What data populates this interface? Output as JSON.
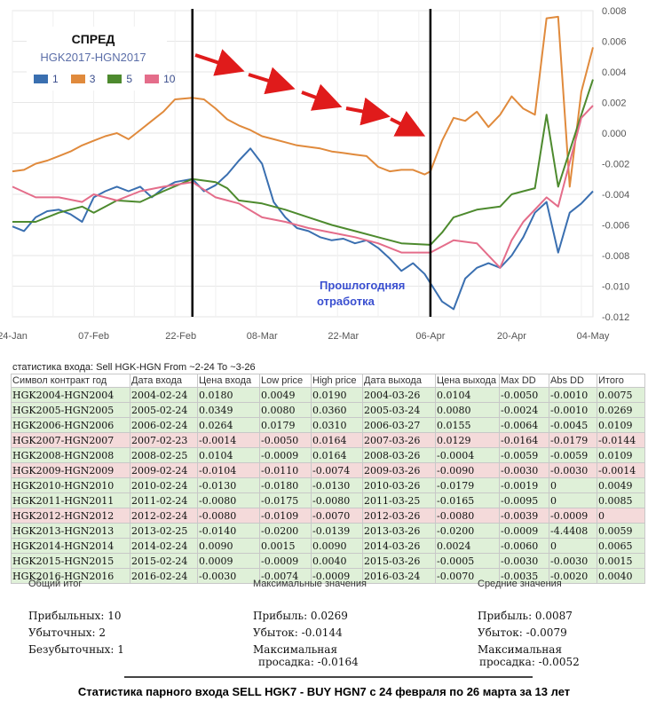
{
  "legend": {
    "title": "СПРЕД",
    "subtitle": "HGK2017-HGN2017",
    "items": [
      {
        "label": "1",
        "color": "#3a6fb0"
      },
      {
        "label": "3",
        "color": "#e08a3c"
      },
      {
        "label": "5",
        "color": "#4d8a2e"
      },
      {
        "label": "10",
        "color": "#e46d8a"
      }
    ]
  },
  "annotation": "Прошлогодняя отработка",
  "chart_data": {
    "type": "line",
    "x_ticks": [
      "24-Jan",
      "07-Feb",
      "22-Feb",
      "08-Mar",
      "22-Mar",
      "06-Apr",
      "20-Apr",
      "04-May"
    ],
    "y_ticks": [
      "0.008",
      "0.006",
      "0.004",
      "0.002",
      "0.000",
      "-0.002",
      "-0.004",
      "-0.006",
      "-0.008",
      "-0.010",
      "-0.012"
    ],
    "ylim": [
      -0.012,
      0.008
    ],
    "xlim": [
      "2017-01-24",
      "2017-05-04"
    ],
    "grid": true,
    "vertical_markers": [
      "2017-02-24",
      "2017-04-06"
    ],
    "series": [
      {
        "name": "1",
        "color": "#3a6fb0",
        "points": [
          [
            "2017-01-24",
            -0.0061
          ],
          [
            "2017-01-26",
            -0.0064
          ],
          [
            "2017-01-28",
            -0.0055
          ],
          [
            "2017-01-30",
            -0.0051
          ],
          [
            "2017-02-01",
            -0.005
          ],
          [
            "2017-02-03",
            -0.0053
          ],
          [
            "2017-02-05",
            -0.0058
          ],
          [
            "2017-02-07",
            -0.0042
          ],
          [
            "2017-02-09",
            -0.0038
          ],
          [
            "2017-02-11",
            -0.0035
          ],
          [
            "2017-02-13",
            -0.0038
          ],
          [
            "2017-02-15",
            -0.0035
          ],
          [
            "2017-02-17",
            -0.0042
          ],
          [
            "2017-02-19",
            -0.0036
          ],
          [
            "2017-02-21",
            -0.0032
          ],
          [
            "2017-02-24",
            -0.003
          ],
          [
            "2017-02-26",
            -0.0038
          ],
          [
            "2017-02-28",
            -0.0034
          ],
          [
            "2017-03-02",
            -0.0027
          ],
          [
            "2017-03-04",
            -0.0018
          ],
          [
            "2017-03-06",
            -0.001
          ],
          [
            "2017-03-08",
            -0.002
          ],
          [
            "2017-03-10",
            -0.0045
          ],
          [
            "2017-03-12",
            -0.0055
          ],
          [
            "2017-03-14",
            -0.0062
          ],
          [
            "2017-03-16",
            -0.0064
          ],
          [
            "2017-03-18",
            -0.0068
          ],
          [
            "2017-03-20",
            -0.007
          ],
          [
            "2017-03-22",
            -0.0069
          ],
          [
            "2017-03-24",
            -0.0072
          ],
          [
            "2017-03-26",
            -0.007
          ],
          [
            "2017-03-28",
            -0.0075
          ],
          [
            "2017-03-30",
            -0.0082
          ],
          [
            "2017-04-01",
            -0.009
          ],
          [
            "2017-04-03",
            -0.0085
          ],
          [
            "2017-04-05",
            -0.0092
          ],
          [
            "2017-04-06",
            -0.0098
          ],
          [
            "2017-04-08",
            -0.011
          ],
          [
            "2017-04-10",
            -0.0115
          ],
          [
            "2017-04-12",
            -0.0095
          ],
          [
            "2017-04-14",
            -0.0088
          ],
          [
            "2017-04-16",
            -0.0085
          ],
          [
            "2017-04-18",
            -0.0088
          ],
          [
            "2017-04-20",
            -0.008
          ],
          [
            "2017-04-22",
            -0.0068
          ],
          [
            "2017-04-24",
            -0.0052
          ],
          [
            "2017-04-26",
            -0.0045
          ],
          [
            "2017-04-28",
            -0.0078
          ],
          [
            "2017-04-30",
            -0.0052
          ],
          [
            "2017-05-02",
            -0.0046
          ],
          [
            "2017-05-04",
            -0.0038
          ]
        ]
      },
      {
        "name": "3",
        "color": "#e08a3c",
        "points": [
          [
            "2017-01-24",
            -0.0025
          ],
          [
            "2017-01-26",
            -0.0024
          ],
          [
            "2017-01-28",
            -0.002
          ],
          [
            "2017-01-30",
            -0.0018
          ],
          [
            "2017-02-01",
            -0.0015
          ],
          [
            "2017-02-03",
            -0.0012
          ],
          [
            "2017-02-05",
            -0.0008
          ],
          [
            "2017-02-07",
            -0.0005
          ],
          [
            "2017-02-09",
            -0.0002
          ],
          [
            "2017-02-11",
            0.0
          ],
          [
            "2017-02-13",
            -0.0004
          ],
          [
            "2017-02-15",
            0.0002
          ],
          [
            "2017-02-17",
            0.0008
          ],
          [
            "2017-02-19",
            0.0014
          ],
          [
            "2017-02-21",
            0.0022
          ],
          [
            "2017-02-24",
            0.0023
          ],
          [
            "2017-02-26",
            0.0022
          ],
          [
            "2017-02-28",
            0.0016
          ],
          [
            "2017-03-02",
            0.0009
          ],
          [
            "2017-03-04",
            0.0005
          ],
          [
            "2017-03-06",
            0.0002
          ],
          [
            "2017-03-08",
            -0.0002
          ],
          [
            "2017-03-10",
            -0.0004
          ],
          [
            "2017-03-12",
            -0.0006
          ],
          [
            "2017-03-14",
            -0.0008
          ],
          [
            "2017-03-16",
            -0.0009
          ],
          [
            "2017-03-18",
            -0.001
          ],
          [
            "2017-03-20",
            -0.0012
          ],
          [
            "2017-03-22",
            -0.0013
          ],
          [
            "2017-03-24",
            -0.0014
          ],
          [
            "2017-03-26",
            -0.0015
          ],
          [
            "2017-03-28",
            -0.0022
          ],
          [
            "2017-03-30",
            -0.0025
          ],
          [
            "2017-04-01",
            -0.0024
          ],
          [
            "2017-04-03",
            -0.0024
          ],
          [
            "2017-04-05",
            -0.0027
          ],
          [
            "2017-04-06",
            -0.0025
          ],
          [
            "2017-04-08",
            -0.0005
          ],
          [
            "2017-04-10",
            0.001
          ],
          [
            "2017-04-12",
            0.0008
          ],
          [
            "2017-04-14",
            0.0014
          ],
          [
            "2017-04-16",
            0.0004
          ],
          [
            "2017-04-18",
            0.0012
          ],
          [
            "2017-04-20",
            0.0024
          ],
          [
            "2017-04-22",
            0.0016
          ],
          [
            "2017-04-24",
            0.0012
          ],
          [
            "2017-04-26",
            0.0075
          ],
          [
            "2017-04-28",
            0.0076
          ],
          [
            "2017-04-30",
            -0.0035
          ],
          [
            "2017-05-02",
            0.0027
          ],
          [
            "2017-05-04",
            0.0056
          ]
        ]
      },
      {
        "name": "5",
        "color": "#4d8a2e",
        "points": [
          [
            "2017-01-24",
            -0.0058
          ],
          [
            "2017-01-28",
            -0.0058
          ],
          [
            "2017-02-01",
            -0.0052
          ],
          [
            "2017-02-05",
            -0.0048
          ],
          [
            "2017-02-07",
            -0.0052
          ],
          [
            "2017-02-11",
            -0.0044
          ],
          [
            "2017-02-15",
            -0.0045
          ],
          [
            "2017-02-19",
            -0.0038
          ],
          [
            "2017-02-24",
            -0.003
          ],
          [
            "2017-02-28",
            -0.0032
          ],
          [
            "2017-03-02",
            -0.0036
          ],
          [
            "2017-03-04",
            -0.0044
          ],
          [
            "2017-03-08",
            -0.0046
          ],
          [
            "2017-03-12",
            -0.005
          ],
          [
            "2017-03-16",
            -0.0055
          ],
          [
            "2017-03-20",
            -0.006
          ],
          [
            "2017-03-24",
            -0.0064
          ],
          [
            "2017-03-28",
            -0.0068
          ],
          [
            "2017-04-01",
            -0.0072
          ],
          [
            "2017-04-06",
            -0.0073
          ],
          [
            "2017-04-08",
            -0.0065
          ],
          [
            "2017-04-10",
            -0.0055
          ],
          [
            "2017-04-14",
            -0.005
          ],
          [
            "2017-04-18",
            -0.0048
          ],
          [
            "2017-04-20",
            -0.004
          ],
          [
            "2017-04-22",
            -0.0038
          ],
          [
            "2017-04-24",
            -0.0036
          ],
          [
            "2017-04-26",
            0.0012
          ],
          [
            "2017-04-28",
            -0.0035
          ],
          [
            "2017-05-02",
            0.0012
          ],
          [
            "2017-05-04",
            0.0035
          ]
        ]
      },
      {
        "name": "10",
        "color": "#e46d8a",
        "points": [
          [
            "2017-01-24",
            -0.0035
          ],
          [
            "2017-01-28",
            -0.0042
          ],
          [
            "2017-02-01",
            -0.0042
          ],
          [
            "2017-02-05",
            -0.0045
          ],
          [
            "2017-02-07",
            -0.004
          ],
          [
            "2017-02-11",
            -0.0044
          ],
          [
            "2017-02-15",
            -0.0038
          ],
          [
            "2017-02-19",
            -0.0035
          ],
          [
            "2017-02-24",
            -0.0032
          ],
          [
            "2017-02-28",
            -0.0042
          ],
          [
            "2017-03-04",
            -0.0046
          ],
          [
            "2017-03-08",
            -0.0055
          ],
          [
            "2017-03-12",
            -0.0058
          ],
          [
            "2017-03-16",
            -0.0062
          ],
          [
            "2017-03-20",
            -0.0065
          ],
          [
            "2017-03-24",
            -0.0068
          ],
          [
            "2017-03-28",
            -0.0072
          ],
          [
            "2017-04-01",
            -0.0078
          ],
          [
            "2017-04-06",
            -0.0078
          ],
          [
            "2017-04-10",
            -0.007
          ],
          [
            "2017-04-14",
            -0.0072
          ],
          [
            "2017-04-18",
            -0.0088
          ],
          [
            "2017-04-20",
            -0.007
          ],
          [
            "2017-04-22",
            -0.0058
          ],
          [
            "2017-04-26",
            -0.0042
          ],
          [
            "2017-04-28",
            -0.0048
          ],
          [
            "2017-05-02",
            0.001
          ],
          [
            "2017-05-04",
            0.0018
          ]
        ]
      }
    ]
  },
  "table": {
    "title": "статистика входа: Sell HGK-HGN From ~2-24 To ~3-26",
    "columns": [
      "Символ контракт год",
      "Дата входа",
      "Цена входа",
      "Low price",
      "High price",
      "Дата выхода",
      "Цена выхода",
      "Max DD",
      "Abs DD",
      "Итого"
    ],
    "rows": [
      {
        "status": "pos",
        "cells": [
          "HGK2004-HGN2004",
          "2004-02-24",
          "0.0180",
          "0.0049",
          "0.0190",
          "2004-03-26",
          "0.0104",
          "-0.0050",
          "-0.0010",
          "0.0075"
        ]
      },
      {
        "status": "pos",
        "cells": [
          "HGK2005-HGN2005",
          "2005-02-24",
          "0.0349",
          "0.0080",
          "0.0360",
          "2005-03-24",
          "0.0080",
          "-0.0024",
          "-0.0010",
          "0.0269"
        ]
      },
      {
        "status": "pos",
        "cells": [
          "HGK2006-HGN2006",
          "2006-02-24",
          "0.0264",
          "0.0179",
          "0.0310",
          "2006-03-27",
          "0.0155",
          "-0.0064",
          "-0.0045",
          "0.0109"
        ]
      },
      {
        "status": "neg",
        "cells": [
          "HGK2007-HGN2007",
          "2007-02-23",
          "-0.0014",
          "-0.0050",
          "0.0164",
          "2007-03-26",
          "0.0129",
          "-0.0164",
          "-0.0179",
          "-0.0144"
        ]
      },
      {
        "status": "pos",
        "cells": [
          "HGK2008-HGN2008",
          "2008-02-25",
          "0.0104",
          "-0.0009",
          "0.0164",
          "2008-03-26",
          "-0.0004",
          "-0.0059",
          "-0.0059",
          "0.0109"
        ]
      },
      {
        "status": "neg",
        "cells": [
          "HGK2009-HGN2009",
          "2009-02-24",
          "-0.0104",
          "-0.0110",
          "-0.0074",
          "2009-03-26",
          "-0.0090",
          "-0.0030",
          "-0.0030",
          "-0.0014"
        ]
      },
      {
        "status": "pos",
        "cells": [
          "HGK2010-HGN2010",
          "2010-02-24",
          "-0.0130",
          "-0.0180",
          "-0.0130",
          "2010-03-26",
          "-0.0179",
          "-0.0019",
          "0",
          "0.0049"
        ]
      },
      {
        "status": "pos",
        "cells": [
          "HGK2011-HGN2011",
          "2011-02-24",
          "-0.0080",
          "-0.0175",
          "-0.0080",
          "2011-03-25",
          "-0.0165",
          "-0.0095",
          "0",
          "0.0085"
        ]
      },
      {
        "status": "neg",
        "cells": [
          "HGK2012-HGN2012",
          "2012-02-24",
          "-0.0080",
          "-0.0109",
          "-0.0070",
          "2012-03-26",
          "-0.0080",
          "-0.0039",
          "-0.0009",
          "0"
        ]
      },
      {
        "status": "pos",
        "cells": [
          "HGK2013-HGN2013",
          "2013-02-25",
          "-0.0140",
          "-0.0200",
          "-0.0139",
          "2013-03-26",
          "-0.0200",
          "-0.0009",
          "-4.4408",
          "0.0059"
        ]
      },
      {
        "status": "pos",
        "cells": [
          "HGK2014-HGN2014",
          "2014-02-24",
          "0.0090",
          "0.0015",
          "0.0090",
          "2014-03-26",
          "0.0024",
          "-0.0060",
          "0",
          "0.0065"
        ]
      },
      {
        "status": "pos",
        "cells": [
          "HGK2015-HGN2015",
          "2015-02-24",
          "0.0009",
          "-0.0009",
          "0.0040",
          "2015-03-26",
          "-0.0005",
          "-0.0030",
          "-0.0030",
          "0.0015"
        ]
      },
      {
        "status": "pos",
        "cells": [
          "HGK2016-HGN2016",
          "2016-02-24",
          "-0.0030",
          "-0.0074",
          "-0.0009",
          "2016-03-24",
          "-0.0070",
          "-0.0035",
          "-0.0020",
          "0.0040"
        ]
      }
    ]
  },
  "summary": {
    "total": {
      "heading": "Общий итог",
      "lines": [
        "Прибыльных: 10",
        "Убыточных: 2",
        "Безубыточных: 1"
      ]
    },
    "max": {
      "heading": "Максимальные значения",
      "lines": [
        "Прибыль: 0.0269",
        "Убыток: -0.0144",
        "Максимальная",
        "просадка: -0.0164"
      ]
    },
    "avg": {
      "heading": "Средние значения",
      "lines": [
        "Прибыль: 0.0087",
        "Убыток: -0.0079",
        "Максимальная",
        "просадка: -0.0052"
      ]
    }
  },
  "footer": "Статистика парного входа SELL HGK7 - BUY HGN7  с 24 февраля по 26 марта за 13 лет"
}
